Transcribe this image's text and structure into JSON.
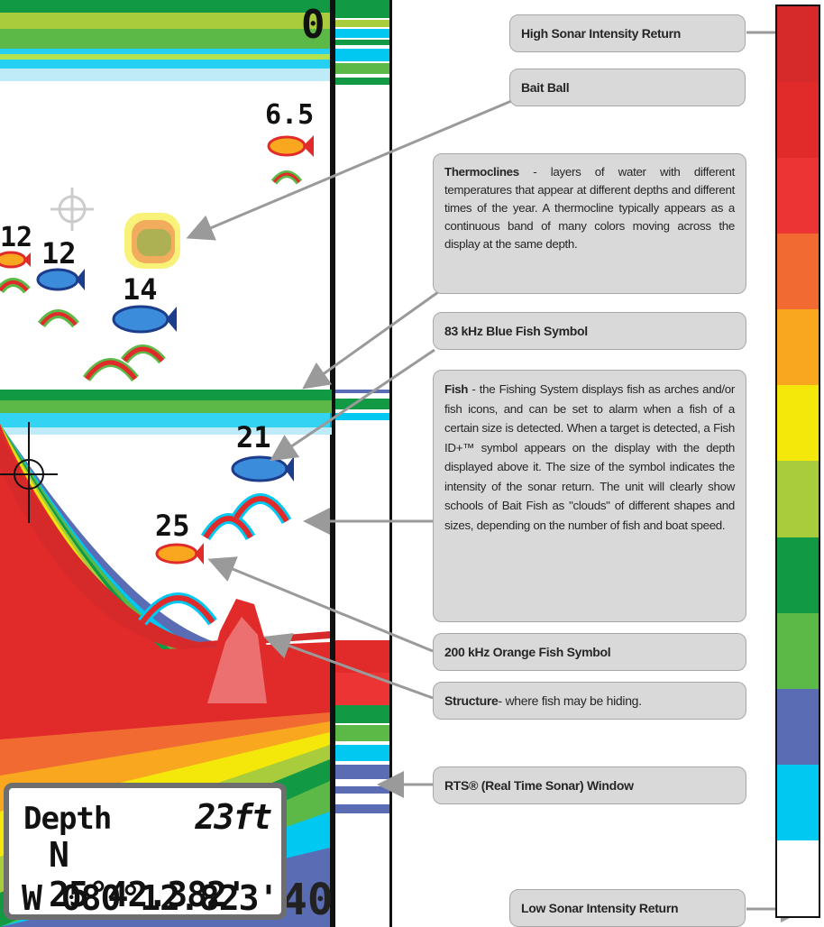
{
  "legend": {
    "high": "High Sonar Intensity Return",
    "bait_ball": "Bait Ball",
    "thermoclines_term": "Thermoclines",
    "thermoclines_sep": " - ",
    "thermoclines_desc": "layers of water with different temperatures that appear at different depths and different times of the year. A thermocline typically appears as a continuous band of many colors moving across the display at the same depth.",
    "blue_fish": "83 kHz Blue Fish Symbol",
    "fish_term": "Fish",
    "fish_sep": " - ",
    "fish_desc": "the Fishing System displays fish as arches and/or fish icons, and can be set to alarm when a fish of a certain size is detected. When a target is detected, a Fish ID+™ symbol appears on the display with the depth displayed above it. The size of the symbol indicates the intensity of the sonar return. The unit will clearly show schools of Bait Fish as \"clouds\" of different shapes and sizes, depending on the number of fish and boat speed.",
    "orange_fish": "200 kHz Orange Fish Symbol",
    "structure_term": "Structure",
    "structure_desc": " - where fish may be hiding.",
    "rts": "RTS® (Real Time Sonar) Window",
    "low": "Low Sonar Intensity Return"
  },
  "intensity_scale": [
    "#d62a2a",
    "#e12a2a",
    "#ec3434",
    "#f06a32",
    "#f8a71e",
    "#f4e80a",
    "#a8cc3c",
    "#119a43",
    "#5cb847",
    "#5a6db4",
    "#00c8f0",
    "#ffffff"
  ],
  "sonar": {
    "scale_top": "0",
    "scale_bottom": "40",
    "fish_depths": [
      "6.5",
      "12",
      "12",
      "14",
      "21",
      "25"
    ],
    "info": {
      "depth_label": "Depth",
      "depth_value": "23ft",
      "latitude": "N 25°42.382'",
      "longitude": "W 080°12.823'"
    }
  }
}
